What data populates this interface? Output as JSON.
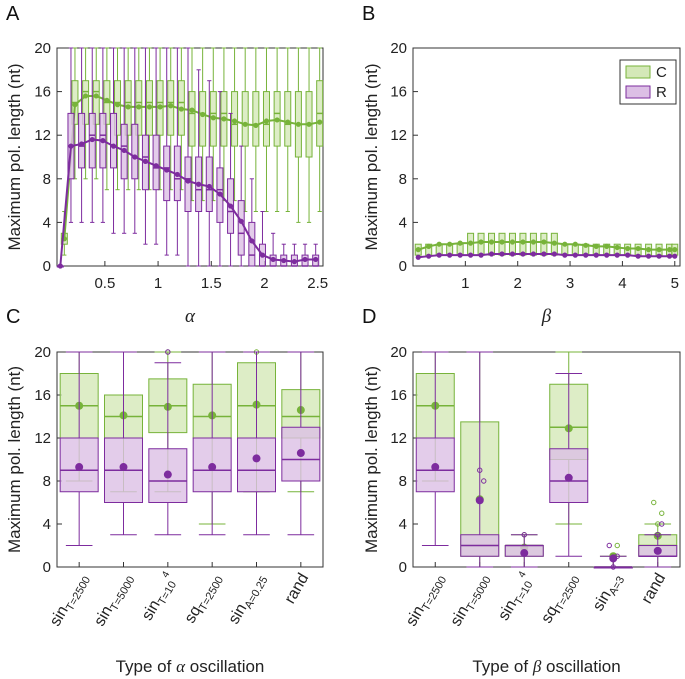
{
  "colors": {
    "C": "#77b33a",
    "R": "#7d2c9e",
    "C_fill": "#d4e8b8",
    "R_fill": "#dcbfe5"
  },
  "legend": {
    "C": "C",
    "R": "R"
  },
  "chart_data": [
    {
      "panel": "A",
      "type": "box-line",
      "ylabel": "Maximum pol. length (nt)",
      "xlabel": "α",
      "ylim": [
        0,
        20
      ],
      "yticks": [
        "0",
        "4",
        "8",
        "12",
        "16",
        "20"
      ],
      "xlim": [
        0.05,
        2.55
      ],
      "xticks": [
        "0.5",
        "1",
        "1.5",
        "2",
        "2.5"
      ],
      "x": [
        0.1,
        0.2,
        0.3,
        0.4,
        0.5,
        0.6,
        0.7,
        0.8,
        0.9,
        1.0,
        1.1,
        1.2,
        1.3,
        1.4,
        1.5,
        1.6,
        1.7,
        1.8,
        1.9,
        2.0,
        2.1,
        2.2,
        2.3,
        2.4,
        2.5
      ],
      "series": [
        {
          "name": "C",
          "mean": [
            2.5,
            14.8,
            15.6,
            15.6,
            15.2,
            14.8,
            14.6,
            14.6,
            14.6,
            14.6,
            14.7,
            14.4,
            14.3,
            13.9,
            13.6,
            13.5,
            13.3,
            13.0,
            12.9,
            13.3,
            13.4,
            13.2,
            13.0,
            13.0,
            13.2
          ],
          "q1": [
            2,
            13,
            13,
            13,
            13,
            12,
            12,
            12,
            12,
            12,
            12,
            12,
            11,
            11,
            11,
            11,
            11,
            11,
            11,
            11,
            11,
            11,
            10,
            10,
            11
          ],
          "median": [
            2.5,
            15,
            16,
            16,
            15,
            15,
            15,
            15,
            15,
            15,
            15,
            15,
            14,
            14,
            14,
            14,
            13,
            13,
            13,
            13,
            14,
            13,
            13,
            13,
            14
          ],
          "q3": [
            3,
            17,
            17,
            17,
            17,
            17,
            17,
            17,
            17,
            17,
            17,
            17,
            16,
            16,
            16,
            16,
            16,
            16,
            16,
            16,
            16,
            16,
            16,
            16,
            17
          ],
          "lo": [
            1,
            8,
            8,
            8,
            7,
            7,
            7,
            7,
            7,
            7,
            7,
            7,
            6,
            6,
            6,
            6,
            6,
            5,
            5,
            5,
            5,
            5,
            4,
            4,
            5
          ],
          "hi": [
            5,
            20,
            20,
            20,
            20,
            20,
            20,
            20,
            20,
            20,
            20,
            20,
            20,
            20,
            20,
            20,
            20,
            20,
            20,
            20,
            20,
            20,
            20,
            20,
            20
          ]
        },
        {
          "name": "R",
          "mean": [
            0,
            11.0,
            11.2,
            11.6,
            11.5,
            11.0,
            10.6,
            10.0,
            9.6,
            9.2,
            8.8,
            8.4,
            7.8,
            7.5,
            7.3,
            6.6,
            5.5,
            4.1,
            2.3,
            1.0,
            0.6,
            0.5,
            0.4,
            0.6,
            0.6
          ],
          "q1": [
            0,
            8,
            9,
            9,
            9,
            9,
            8,
            8,
            7,
            7,
            6,
            6,
            5,
            5,
            5,
            4,
            3,
            1,
            0,
            0,
            0,
            0,
            0,
            0,
            0
          ],
          "median": [
            0,
            11,
            11,
            12,
            12,
            11,
            11,
            10,
            10,
            9,
            9,
            8,
            8,
            7,
            7,
            7,
            5,
            3,
            1,
            0,
            0,
            0,
            0,
            0,
            0
          ],
          "q3": [
            0,
            14,
            14,
            14,
            14,
            14,
            13,
            13,
            12,
            12,
            11,
            11,
            10,
            10,
            10,
            9,
            8,
            6,
            4,
            2,
            1,
            1,
            1,
            1,
            1
          ],
          "lo": [
            0,
            4,
            4,
            4,
            4,
            3,
            3,
            3,
            2,
            2,
            1,
            1,
            0,
            0,
            0,
            0,
            0,
            0,
            0,
            0,
            0,
            0,
            0,
            0,
            0
          ],
          "hi": [
            0,
            20,
            20,
            20,
            20,
            20,
            20,
            20,
            20,
            20,
            20,
            20,
            20,
            18,
            17,
            16,
            14,
            11,
            8,
            5,
            3,
            2,
            2,
            2,
            2
          ]
        }
      ]
    },
    {
      "panel": "B",
      "type": "box-line",
      "ylabel": "Maximum pol. length (nt)",
      "xlabel": "β",
      "ylim": [
        0,
        20
      ],
      "yticks": [
        "0",
        "4",
        "8",
        "12",
        "16",
        "20"
      ],
      "xlim": [
        0,
        5.1
      ],
      "xticks": [
        "1",
        "2",
        "3",
        "4",
        "5"
      ],
      "legend_position": "top-right",
      "x": [
        0.1,
        0.3,
        0.5,
        0.7,
        0.9,
        1.1,
        1.3,
        1.5,
        1.7,
        1.9,
        2.1,
        2.3,
        2.5,
        2.7,
        2.9,
        3.1,
        3.3,
        3.5,
        3.7,
        3.9,
        4.1,
        4.3,
        4.5,
        4.7,
        4.9,
        5.0
      ],
      "series": [
        {
          "name": "C",
          "mean": [
            1.5,
            1.8,
            2.0,
            2.0,
            2.1,
            2.1,
            2.2,
            2.2,
            2.2,
            2.2,
            2.2,
            2.2,
            2.2,
            2.1,
            2.0,
            2.0,
            1.9,
            1.8,
            1.8,
            1.7,
            1.6,
            1.6,
            1.5,
            1.5,
            1.5,
            1.5
          ],
          "q1": [
            1,
            1,
            1,
            1,
            1,
            1,
            1,
            1,
            1,
            1,
            1,
            1,
            1,
            1,
            1,
            1,
            1,
            1,
            1,
            1,
            1,
            1,
            1,
            1,
            1,
            1
          ],
          "q3": [
            2,
            2,
            2,
            2,
            2,
            3,
            3,
            3,
            3,
            3,
            3,
            3,
            3,
            3,
            2,
            2,
            2,
            2,
            2,
            2,
            2,
            2,
            2,
            2,
            2,
            2
          ]
        },
        {
          "name": "R",
          "mean": [
            0.8,
            0.9,
            1.0,
            1.0,
            1.0,
            1.0,
            1.0,
            1.1,
            1.1,
            1.1,
            1.1,
            1.1,
            1.1,
            1.1,
            1.0,
            1.0,
            1.0,
            1.0,
            1.0,
            1.0,
            1.0,
            0.9,
            0.9,
            0.9,
            0.9,
            0.9
          ]
        }
      ]
    },
    {
      "panel": "C",
      "type": "box",
      "ylabel": "Maximum pol. length (nt)",
      "xlabel_prefix": "Type of ",
      "xlabel_symbol": "α",
      "xlabel_suffix": " oscillation",
      "ylim": [
        0,
        20
      ],
      "yticks": [
        "0",
        "4",
        "8",
        "12",
        "16",
        "20"
      ],
      "categories": [
        {
          "base": "sin",
          "sub": "T=2500",
          "sup": ""
        },
        {
          "base": "sin",
          "sub": "T=5000",
          "sup": ""
        },
        {
          "base": "sin",
          "sub": "T=10",
          "sup": "4"
        },
        {
          "base": "sq",
          "sub": "T=2500",
          "sup": ""
        },
        {
          "base": "sin",
          "sub": "A=0.25",
          "sup": ""
        },
        {
          "base": "rand",
          "sub": "",
          "sup": ""
        }
      ],
      "series": [
        {
          "name": "C",
          "q1": [
            12,
            12,
            12.5,
            12,
            12,
            12
          ],
          "median": [
            15,
            14,
            15,
            14,
            15,
            14
          ],
          "q3": [
            18,
            16,
            17.5,
            17,
            19,
            16.5
          ],
          "lo": [
            8,
            7,
            7,
            4,
            7,
            7
          ],
          "hi": [
            20,
            20,
            20,
            20,
            20,
            20
          ],
          "mean": [
            15,
            14.1,
            14.9,
            14.1,
            15.1,
            14.6
          ],
          "outliers": [
            [],
            [],
            [
              20
            ],
            [],
            [
              20
            ],
            []
          ]
        },
        {
          "name": "R",
          "q1": [
            7,
            6,
            6,
            7,
            7,
            8
          ],
          "median": [
            9,
            9,
            8,
            9,
            9,
            10
          ],
          "q3": [
            12,
            12,
            11,
            12,
            12,
            13
          ],
          "lo": [
            2,
            3,
            3,
            3,
            3,
            3
          ],
          "hi": [
            20,
            20,
            19,
            20,
            20,
            20
          ],
          "mean": [
            9.3,
            9.3,
            8.6,
            9.3,
            10.1,
            10.6
          ],
          "outliers": [
            [],
            [],
            [
              20
            ],
            [],
            [],
            []
          ]
        }
      ]
    },
    {
      "panel": "D",
      "type": "box",
      "ylabel": "Maximum pol. length (nt)",
      "xlabel_prefix": "Type of ",
      "xlabel_symbol": "β",
      "xlabel_suffix": " oscillation",
      "ylim": [
        0,
        20
      ],
      "yticks": [
        "0",
        "4",
        "8",
        "12",
        "16",
        "20"
      ],
      "categories": [
        {
          "base": "sin",
          "sub": "T=2500",
          "sup": ""
        },
        {
          "base": "sin",
          "sub": "T=5000",
          "sup": ""
        },
        {
          "base": "sin",
          "sub": "T=10",
          "sup": "4"
        },
        {
          "base": "sq",
          "sub": "T=2500",
          "sup": ""
        },
        {
          "base": "sin",
          "sub": "A=3",
          "sup": ""
        },
        {
          "base": "rand",
          "sub": "",
          "sup": ""
        }
      ],
      "series": [
        {
          "name": "C",
          "q1": [
            12,
            1,
            1,
            10,
            0,
            1
          ],
          "median": [
            15,
            2,
            2,
            13,
            0,
            2
          ],
          "q3": [
            18,
            13.5,
            2,
            17,
            0,
            3
          ],
          "lo": [
            8,
            0,
            0,
            4,
            0,
            0
          ],
          "hi": [
            20,
            20,
            3,
            20,
            1,
            4
          ],
          "mean": [
            15,
            6.3,
            1.8,
            12.9,
            1.0,
            2.9
          ],
          "outliers": [
            [],
            [],
            [
              3
            ],
            [],
            [
              1,
              2
            ],
            [
              4,
              5,
              6
            ]
          ]
        },
        {
          "name": "R",
          "q1": [
            7,
            1,
            1,
            6,
            0,
            1
          ],
          "median": [
            9,
            2,
            2,
            8,
            0,
            1
          ],
          "q3": [
            12,
            3,
            2,
            11,
            0,
            2
          ],
          "lo": [
            2,
            0,
            0,
            1,
            0,
            0
          ],
          "hi": [
            20,
            20,
            3,
            18,
            1,
            3
          ],
          "mean": [
            9.3,
            6.2,
            1.3,
            8.3,
            0.8,
            1.5
          ],
          "outliers": [
            [],
            [
              9,
              8
            ],
            [
              3
            ],
            [],
            [
              0,
              1,
              2
            ],
            [
              3,
              4
            ]
          ]
        }
      ]
    }
  ]
}
